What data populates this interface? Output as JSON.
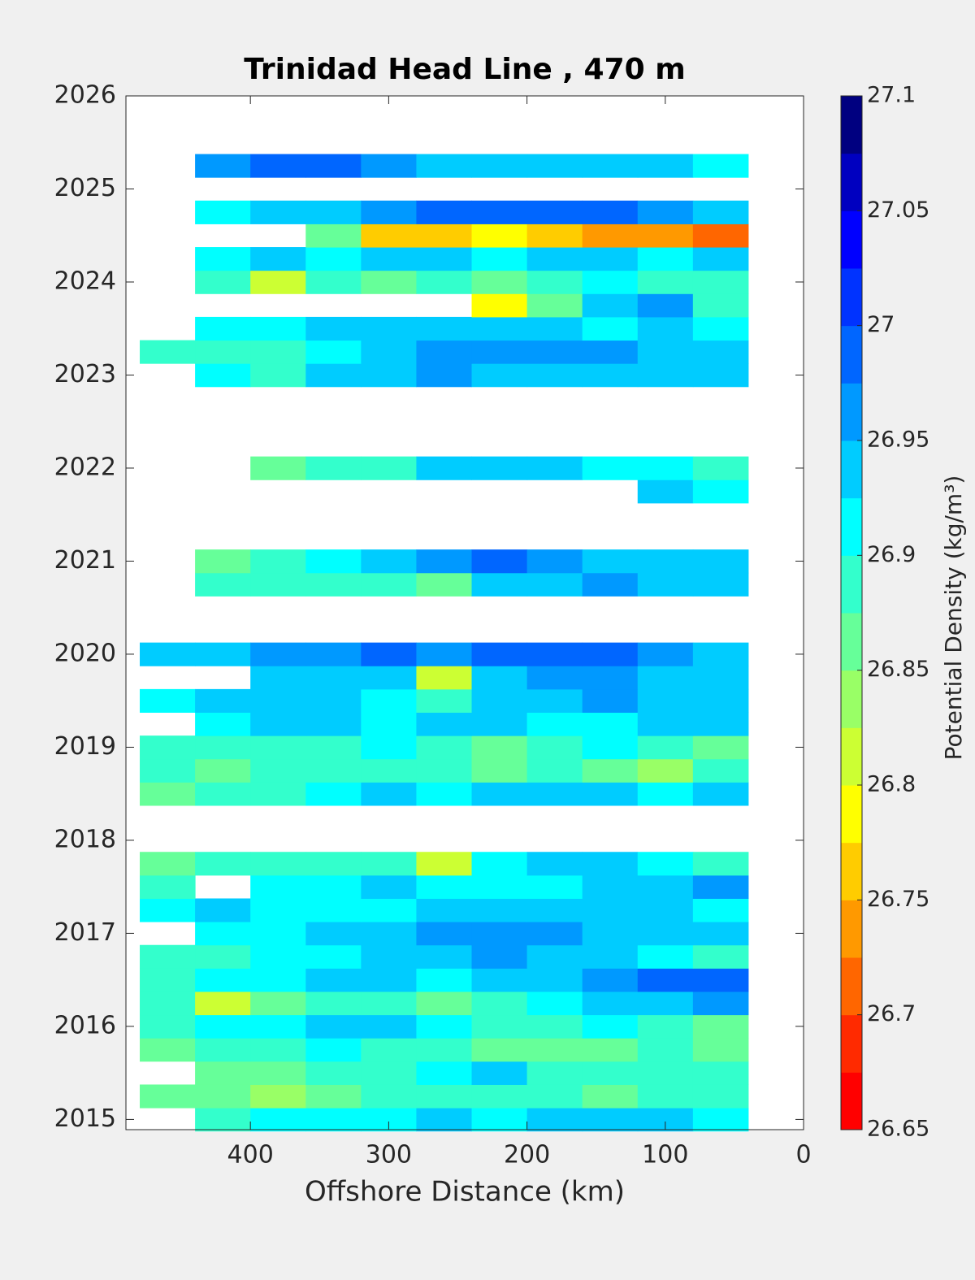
{
  "chart_data": {
    "type": "contour",
    "title": "Trinidad Head Line , 470 m",
    "x_label": "Offshore Distance (km)",
    "colorbar_label": "Potential Density (kg/m³)",
    "xlim": [
      490,
      0
    ],
    "ylim": [
      2014.89,
      2026
    ],
    "xticks": [
      400,
      300,
      200,
      100,
      0
    ],
    "yticks": [
      2015,
      2016,
      2017,
      2018,
      2019,
      2020,
      2021,
      2022,
      2023,
      2024,
      2025,
      2026
    ],
    "clim": [
      26.65,
      27.1
    ],
    "cticks": [
      26.65,
      26.7,
      26.75,
      26.8,
      26.85,
      26.9,
      26.95,
      27,
      27.05,
      27.1
    ],
    "colormap": [
      "#ff0000",
      "#ff2a00",
      "#ff6600",
      "#ff9900",
      "#ffcc00",
      "#ffff00",
      "#ccff33",
      "#99ff66",
      "#66ff99",
      "#33ffcc",
      "#00ffff",
      "#00ccff",
      "#0099ff",
      "#0066ff",
      "#0033ff",
      "#0000ff",
      "#0000c0",
      "#000080"
    ],
    "x": [
      460,
      420,
      380,
      340,
      300,
      260,
      220,
      180,
      140,
      100,
      60
    ],
    "y": [
      2015,
      2015.25,
      2015.5,
      2015.75,
      2016,
      2016.25,
      2016.5,
      2016.75,
      2017,
      2017.25,
      2017.5,
      2017.75,
      2018,
      2018.25,
      2018.5,
      2018.75,
      2019,
      2019.25,
      2019.5,
      2019.75,
      2020,
      2020.25,
      2020.5,
      2020.75,
      2021,
      2021.25,
      2021.5,
      2021.75,
      2022,
      2022.25,
      2022.5,
      2022.75,
      2023,
      2023.25,
      2023.5,
      2023.75,
      2024,
      2024.25,
      2024.5,
      2024.75,
      2025,
      2025.25
    ],
    "z": [
      [
        null,
        26.9,
        26.92,
        26.92,
        26.91,
        26.93,
        26.92,
        26.93,
        26.94,
        26.93,
        26.92
      ],
      [
        26.85,
        26.86,
        26.84,
        26.87,
        26.88,
        26.89,
        26.9,
        26.88,
        26.87,
        26.88,
        26.88
      ],
      [
        null,
        26.87,
        26.86,
        26.88,
        26.9,
        26.92,
        26.94,
        26.9,
        26.89,
        26.9,
        26.88
      ],
      [
        26.87,
        26.88,
        26.89,
        26.91,
        26.9,
        26.88,
        26.86,
        26.87,
        26.85,
        26.88,
        26.87
      ],
      [
        26.9,
        26.91,
        26.92,
        26.93,
        26.93,
        26.91,
        26.9,
        26.9,
        26.91,
        26.9,
        26.86
      ],
      [
        26.88,
        26.8,
        26.87,
        26.89,
        26.89,
        26.87,
        26.9,
        26.92,
        26.94,
        26.95,
        26.97
      ],
      [
        26.9,
        26.91,
        26.92,
        26.93,
        26.93,
        26.92,
        26.94,
        26.95,
        26.97,
        26.98,
        26.98
      ],
      [
        26.88,
        26.9,
        26.91,
        26.92,
        26.94,
        26.95,
        26.96,
        26.94,
        26.93,
        26.92,
        26.9
      ],
      [
        null,
        26.91,
        26.92,
        26.93,
        26.94,
        26.96,
        26.97,
        26.96,
        26.95,
        26.94,
        26.93
      ],
      [
        26.92,
        26.93,
        26.92,
        26.91,
        26.92,
        26.94,
        26.93,
        26.95,
        26.93,
        26.94,
        26.92
      ],
      [
        26.9,
        null,
        26.91,
        26.92,
        26.93,
        26.92,
        26.91,
        26.92,
        26.93,
        26.95,
        26.96
      ],
      [
        26.87,
        26.88,
        26.89,
        26.9,
        26.9,
        26.82,
        26.92,
        26.94,
        26.93,
        26.92,
        26.88
      ],
      [
        null,
        null,
        null,
        null,
        null,
        null,
        null,
        null,
        null,
        null,
        null
      ],
      [
        null,
        null,
        null,
        null,
        null,
        null,
        null,
        null,
        null,
        null,
        null
      ],
      [
        26.87,
        26.88,
        26.9,
        26.92,
        26.93,
        26.92,
        26.94,
        26.95,
        26.93,
        26.92,
        26.93
      ],
      [
        26.88,
        26.87,
        26.89,
        26.9,
        26.9,
        26.88,
        26.86,
        26.88,
        26.87,
        26.84,
        26.88
      ],
      [
        26.9,
        26.89,
        26.88,
        26.9,
        26.91,
        26.89,
        26.87,
        26.9,
        26.91,
        26.88,
        26.86
      ],
      [
        null,
        26.92,
        26.93,
        26.93,
        26.92,
        26.94,
        26.93,
        26.92,
        26.91,
        26.93,
        26.94
      ],
      [
        26.92,
        26.93,
        26.93,
        26.94,
        26.92,
        26.9,
        26.94,
        26.95,
        26.96,
        26.95,
        26.94
      ],
      [
        null,
        null,
        26.94,
        26.95,
        26.94,
        26.8,
        26.95,
        26.97,
        26.96,
        26.94,
        26.93
      ],
      [
        26.93,
        26.94,
        26.96,
        26.97,
        26.98,
        26.97,
        26.98,
        26.99,
        26.98,
        26.96,
        26.95
      ],
      [
        null,
        null,
        null,
        null,
        null,
        null,
        null,
        null,
        null,
        null,
        null
      ],
      [
        null,
        null,
        null,
        null,
        null,
        null,
        null,
        null,
        null,
        null,
        null
      ],
      [
        null,
        26.88,
        26.89,
        26.9,
        26.88,
        26.87,
        26.93,
        26.95,
        26.96,
        26.95,
        26.94
      ],
      [
        null,
        26.87,
        26.88,
        26.92,
        26.94,
        26.96,
        26.98,
        26.96,
        26.95,
        26.94,
        26.93
      ],
      [
        null,
        null,
        null,
        null,
        null,
        null,
        null,
        null,
        null,
        null,
        null
      ],
      [
        null,
        null,
        null,
        null,
        null,
        null,
        null,
        null,
        null,
        null,
        null
      ],
      [
        null,
        null,
        null,
        null,
        null,
        null,
        null,
        null,
        null,
        26.93,
        26.92
      ],
      [
        null,
        null,
        26.86,
        26.89,
        26.9,
        26.93,
        26.94,
        26.93,
        26.92,
        26.91,
        26.9
      ],
      [
        null,
        null,
        null,
        null,
        null,
        null,
        null,
        null,
        null,
        null,
        null
      ],
      [
        null,
        null,
        null,
        null,
        null,
        null,
        null,
        null,
        null,
        null,
        null
      ],
      [
        null,
        null,
        null,
        null,
        null,
        null,
        null,
        null,
        null,
        null,
        null
      ],
      [
        null,
        26.91,
        26.9,
        26.93,
        26.94,
        26.96,
        26.95,
        26.94,
        26.93,
        26.95,
        26.94
      ],
      [
        26.89,
        26.88,
        26.9,
        26.92,
        26.94,
        26.96,
        26.97,
        26.96,
        26.97,
        26.95,
        26.93
      ],
      [
        null,
        26.91,
        26.92,
        26.93,
        26.94,
        26.93,
        26.94,
        26.93,
        26.92,
        26.93,
        26.91
      ],
      [
        null,
        null,
        null,
        null,
        null,
        null,
        26.78,
        26.86,
        26.93,
        26.96,
        26.88
      ],
      [
        null,
        26.9,
        26.8,
        26.88,
        26.87,
        26.88,
        26.87,
        26.9,
        26.91,
        26.9,
        26.89
      ],
      [
        null,
        26.92,
        26.93,
        26.92,
        26.94,
        26.93,
        26.92,
        26.93,
        26.94,
        26.92,
        26.93
      ],
      [
        null,
        null,
        null,
        26.86,
        26.76,
        26.77,
        26.79,
        26.75,
        26.74,
        26.74,
        26.72
      ],
      [
        null,
        26.92,
        26.93,
        26.94,
        26.97,
        26.98,
        26.99,
        27.0,
        26.99,
        26.97,
        26.95
      ],
      [
        null,
        null,
        null,
        null,
        null,
        null,
        null,
        null,
        null,
        null,
        null
      ],
      [
        null,
        26.96,
        26.98,
        27.0,
        26.97,
        26.95,
        26.94,
        26.93,
        26.94,
        26.93,
        26.92
      ]
    ]
  }
}
